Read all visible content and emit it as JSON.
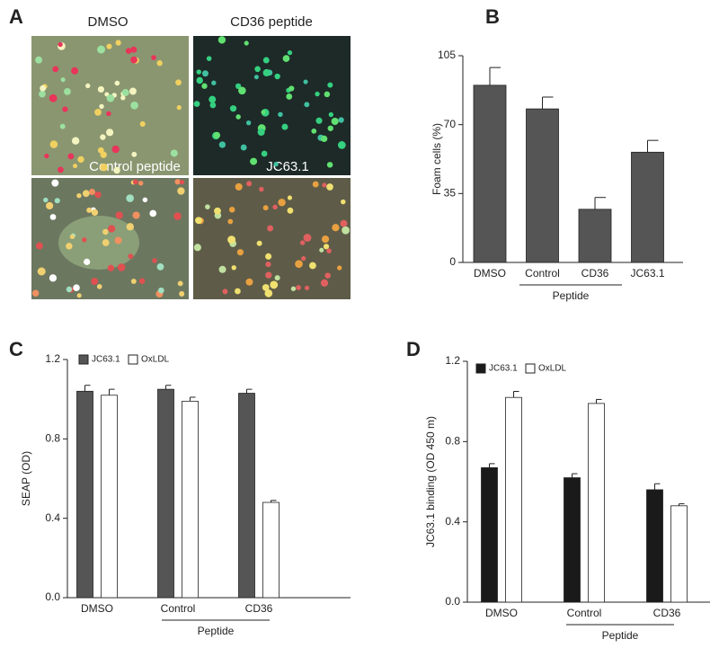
{
  "images": {
    "panel_label": "A",
    "captions": [
      "DMSO",
      "CD36 peptide",
      "Control peptide",
      "JC63.1"
    ]
  },
  "chart_data": [
    {
      "type": "bar",
      "panel_label": "B",
      "y_label": "Foam cells (%)",
      "group_label": "Peptide",
      "categories": [
        "DMSO",
        "Control",
        "CD36",
        "JC63.1"
      ],
      "series": [
        {
          "name": null,
          "color": "#555555",
          "values": [
            90,
            78,
            27,
            56
          ],
          "errors": [
            9,
            6,
            6,
            6
          ]
        }
      ],
      "ylim": [
        0,
        105
      ],
      "yticks": [
        0,
        35,
        70,
        105
      ]
    },
    {
      "type": "bar",
      "panel_label": "C",
      "y_label": "SEAP (OD)",
      "group_label": "Peptide",
      "categories": [
        "DMSO",
        "Control",
        "CD36"
      ],
      "series": [
        {
          "name": "JC63.1",
          "color": "#555555",
          "values": [
            1.04,
            1.05,
            1.03
          ],
          "errors": [
            0.03,
            0.02,
            0.02
          ]
        },
        {
          "name": "OxLDL",
          "color": "#ffffff",
          "values": [
            1.02,
            0.99,
            0.48
          ],
          "errors": [
            0.03,
            0.02,
            0.01
          ]
        }
      ],
      "ylim": [
        0,
        1.2
      ],
      "yticks": [
        {
          "value": 0,
          "label": "0.0"
        },
        0.4,
        0.8,
        1.2
      ]
    },
    {
      "type": "bar",
      "panel_label": "D",
      "y_label": "JC63.1 binding (OD 450 m)",
      "group_label": "Peptide",
      "categories": [
        "DMSO",
        "Control",
        "CD36"
      ],
      "series": [
        {
          "name": "JC63.1",
          "color": "#1a1a1a",
          "values": [
            0.67,
            0.62,
            0.56
          ],
          "errors": [
            0.02,
            0.02,
            0.03
          ]
        },
        {
          "name": "OxLDL",
          "color": "#ffffff",
          "values": [
            1.02,
            0.99,
            0.48
          ],
          "errors": [
            0.03,
            0.02,
            0.01
          ]
        }
      ],
      "ylim": [
        0,
        1.2
      ],
      "yticks": [
        {
          "value": 0,
          "label": "0.0"
        },
        0.4,
        0.8,
        1.2
      ]
    }
  ]
}
